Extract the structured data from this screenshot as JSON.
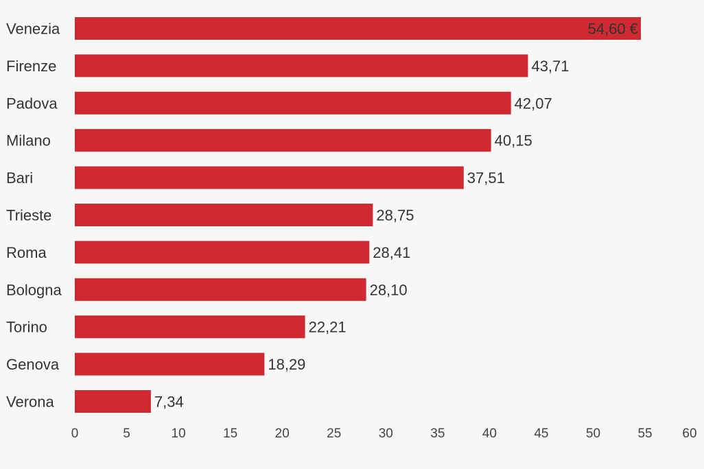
{
  "chart_data": {
    "type": "bar",
    "orientation": "horizontal",
    "title": "",
    "xlabel": "",
    "ylabel": "",
    "categories": [
      "Venezia",
      "Firenze",
      "Padova",
      "Milano",
      "Bari",
      "Trieste",
      "Roma",
      "Bologna",
      "Torino",
      "Genova",
      "Verona"
    ],
    "values": [
      54.6,
      43.71,
      42.07,
      40.15,
      37.51,
      28.75,
      28.41,
      28.1,
      22.21,
      18.29,
      7.34
    ],
    "value_labels": [
      "54,60 €",
      "43,71",
      "42,07",
      "40,15",
      "37,51",
      "28,75",
      "28,41",
      "28,10",
      "22,21",
      "18,29",
      "7,34"
    ],
    "xlim": [
      0,
      60
    ],
    "x_ticks": [
      "0",
      "5",
      "10",
      "15",
      "20",
      "25",
      "30",
      "35",
      "40",
      "45",
      "50",
      "55",
      "60"
    ],
    "grid": false,
    "bar_color": "#cf2a31"
  }
}
